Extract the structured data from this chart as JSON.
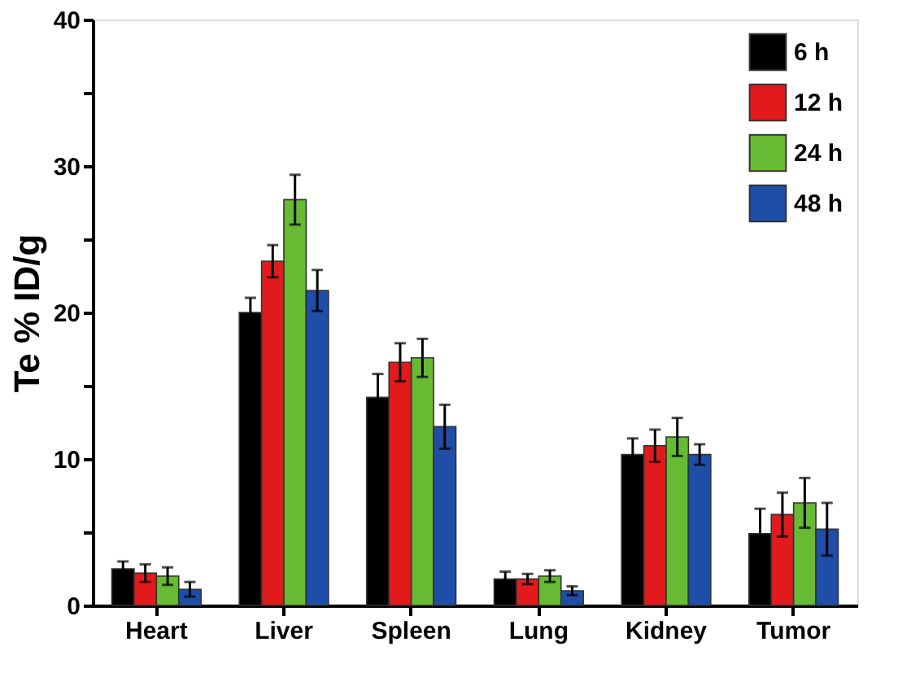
{
  "chart_data": {
    "type": "bar",
    "ylabel": "Te % ID/g",
    "categories": [
      "Heart",
      "Liver",
      "Spleen",
      "Lung",
      "Kidney",
      "Tumor"
    ],
    "series": [
      {
        "name": "6 h",
        "color": "#000000",
        "values": [
          2.5,
          20.0,
          14.2,
          1.8,
          10.3,
          4.9
        ],
        "errors": [
          0.5,
          1.0,
          1.6,
          0.5,
          1.1,
          1.7
        ]
      },
      {
        "name": "12 h",
        "color": "#e31a1c",
        "values": [
          2.2,
          23.5,
          16.6,
          1.8,
          10.9,
          6.2
        ],
        "errors": [
          0.6,
          1.1,
          1.3,
          0.35,
          1.1,
          1.5
        ]
      },
      {
        "name": "24 h",
        "color": "#66bb33",
        "values": [
          2.0,
          27.7,
          16.9,
          2.0,
          11.5,
          7.0
        ],
        "errors": [
          0.6,
          1.7,
          1.3,
          0.4,
          1.3,
          1.7
        ]
      },
      {
        "name": "48 h",
        "color": "#1f4ea8",
        "values": [
          1.1,
          21.5,
          12.2,
          1.0,
          10.3,
          5.2
        ],
        "errors": [
          0.5,
          1.4,
          1.5,
          0.3,
          0.7,
          1.8
        ]
      }
    ],
    "ylim": [
      0,
      40
    ],
    "yticks": [
      0,
      {
        "value": 5,
        "label": null
      },
      10,
      {
        "value": 15,
        "label": null
      },
      20,
      {
        "value": 25,
        "label": null
      },
      30,
      {
        "value": 35,
        "label": null
      },
      40
    ],
    "legend": "top right",
    "grid": false
  }
}
